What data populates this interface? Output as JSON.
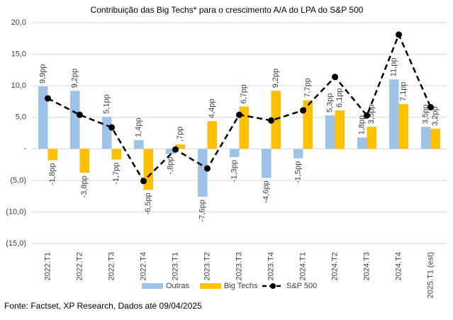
{
  "chart_data": {
    "type": "bar_line",
    "title": "Contribuição das Big Techs* para o crescimento A/A do LPA do S&P 500",
    "source": "Fonte: Factset, XP Research, Dados até 09/04/2025",
    "categories": [
      "2022.T1",
      "2022.T2",
      "2022.T3",
      "2022.T4",
      "2023.T1",
      "2023.T2",
      "2023.T3",
      "2023.T4",
      "2024.T1",
      "2024.T2",
      "2024.T3",
      "2024.T4",
      "2025.T1 (est)"
    ],
    "series": [
      {
        "name": "Outras",
        "kind": "bar",
        "color": "#9dc3e6",
        "values": [
          9.9,
          9.2,
          5.1,
          1.4,
          -0.8,
          -7.6,
          -1.3,
          -4.6,
          -1.5,
          5.3,
          1.8,
          11.0,
          3.5
        ],
        "value_labels": [
          "9,9pp",
          "9,2pp",
          "5,1pp",
          "1,4pp",
          "-,8pp",
          "-7,6pp",
          "-1,3pp",
          "-4,6pp",
          "-1,5pp",
          "5,3pp",
          "1,8pp",
          "11,pp",
          "3,5pp"
        ]
      },
      {
        "name": "Big Techs",
        "kind": "bar",
        "color": "#ffc000",
        "values": [
          -1.8,
          -3.8,
          -1.7,
          -6.5,
          0.7,
          4.4,
          6.7,
          9.2,
          7.7,
          6.1,
          3.5,
          7.1,
          3.2
        ],
        "value_labels": [
          "-1,8pp",
          "-3,8pp",
          "-1,7pp",
          "-6,5pp",
          ",7pp",
          "4,4pp",
          "6,7pp",
          "9,2pp",
          "7,7pp",
          "6,1pp",
          "3,5pp",
          "7,1pp",
          "3,2pp"
        ]
      },
      {
        "name": "S&P 500",
        "kind": "line",
        "color": "#000000",
        "values": [
          8.0,
          5.4,
          3.4,
          -5.1,
          -0.1,
          -3.1,
          5.4,
          4.5,
          6.1,
          11.4,
          5.3,
          18.1,
          6.6
        ]
      }
    ],
    "ylim": [
      -15,
      20
    ],
    "yticks": [
      {
        "value": -15,
        "label": "(15,0)"
      },
      {
        "value": -10,
        "label": "(10,0)"
      },
      {
        "value": -5,
        "label": "(5,0)"
      },
      {
        "value": 0,
        "label": "-"
      },
      {
        "value": 5,
        "label": "5,0"
      },
      {
        "value": 10,
        "label": "10,0"
      },
      {
        "value": 15,
        "label": "15,0"
      },
      {
        "value": 20,
        "label": "20,0"
      }
    ],
    "grid": true
  }
}
